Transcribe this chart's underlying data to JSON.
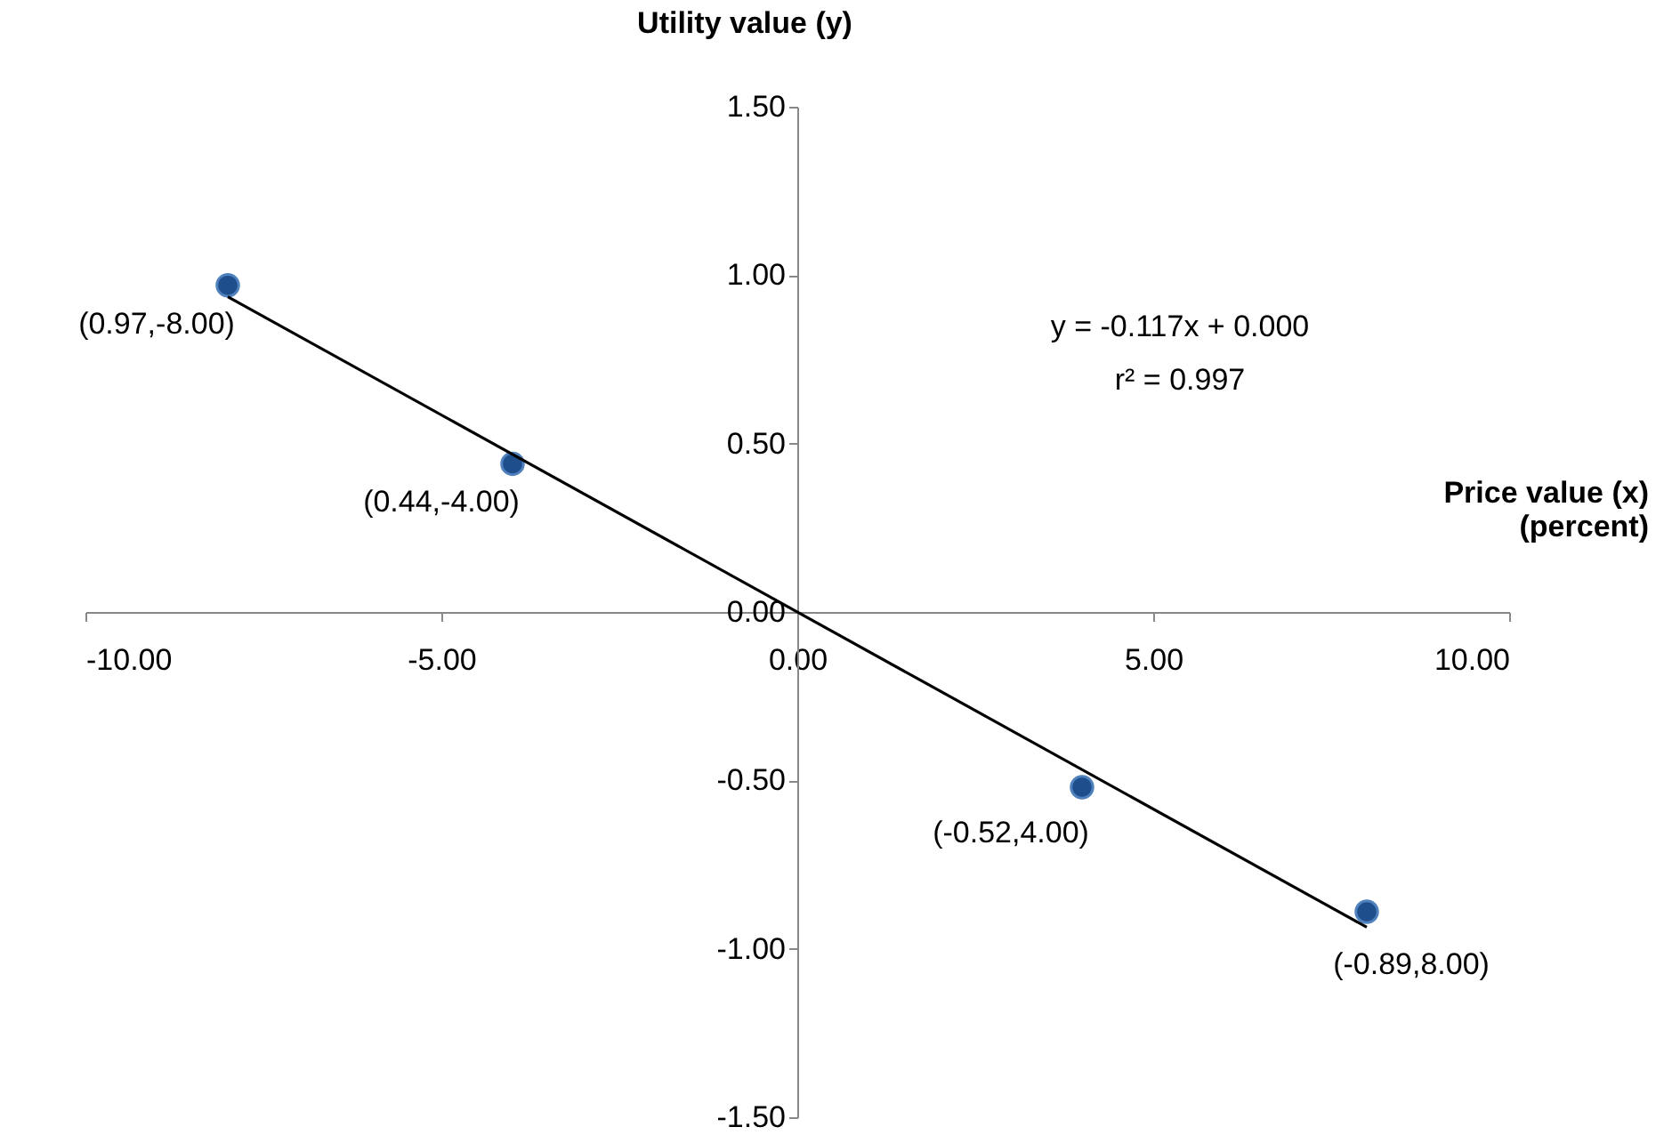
{
  "chart_data": {
    "type": "scatter",
    "xlabel": "Price value (x)\n(percent)",
    "ylabel": "Utility value (y)",
    "xlim": [
      -10,
      10
    ],
    "ylim": [
      -1.5,
      1.5
    ],
    "xticks": [
      {
        "value": -10,
        "label": "-10.00"
      },
      {
        "value": -5,
        "label": "-5.00"
      },
      {
        "value": 0,
        "label": "0.00"
      },
      {
        "value": 5,
        "label": "5.00"
      },
      {
        "value": 10,
        "label": "10.00"
      }
    ],
    "yticks": [
      {
        "value": -1.5,
        "label": "-1.50"
      },
      {
        "value": -1,
        "label": "-1.00"
      },
      {
        "value": -0.5,
        "label": "-0.50"
      },
      {
        "value": 0,
        "label": "0.00"
      },
      {
        "value": 0.5,
        "label": "0.50"
      },
      {
        "value": 1,
        "label": "1.00"
      },
      {
        "value": 1.5,
        "label": "1.50"
      }
    ],
    "x": [
      -8,
      -4,
      4,
      8
    ],
    "marker": "circle",
    "series": [
      {
        "color": "#1f4e8c",
        "values": [
          0.97,
          0.44,
          -0.52,
          -0.89
        ],
        "value_labels": [
          "(0.97,-8.00)",
          "(0.44,-4.00)",
          "(-0.52,4.00)",
          "(-0.89,8.00)"
        ]
      },
      {
        "type": "line",
        "marker": "none",
        "color": "#000000",
        "x": [
          -8,
          8
        ],
        "values": [
          0.936,
          -0.936
        ]
      }
    ],
    "annotations": [
      "y = -0.117x + 0.000",
      "r² = 0.997"
    ]
  }
}
